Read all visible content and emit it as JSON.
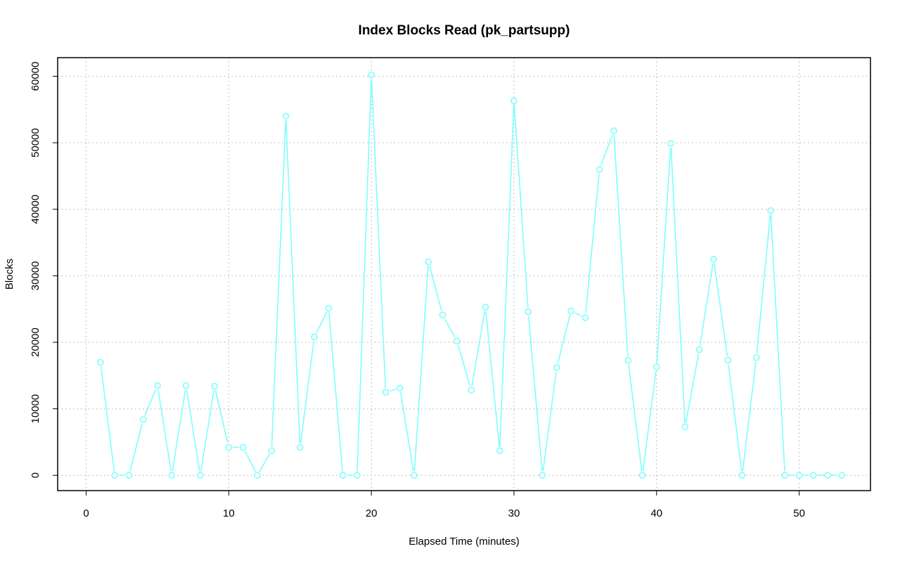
{
  "chart_data": {
    "type": "line",
    "title": "Index Blocks Read (pk_partsupp)",
    "xlabel": "Elapsed Time (minutes)",
    "ylabel": "Blocks",
    "xlim": [
      -2,
      55
    ],
    "ylim": [
      -2300,
      62800
    ],
    "xticks": [
      0,
      10,
      20,
      30,
      40,
      50
    ],
    "yticks": [
      0,
      10000,
      20000,
      30000,
      40000,
      50000,
      60000
    ],
    "grid": true,
    "series_color": "#7ffdfd",
    "series": [
      {
        "x": [
          1,
          2,
          3,
          4,
          5,
          6,
          7,
          8,
          9,
          10,
          11,
          12,
          13,
          14,
          15,
          16,
          17,
          18,
          19,
          20,
          21,
          22,
          23,
          24,
          25,
          26,
          27,
          28,
          29,
          30,
          31,
          32,
          33,
          34,
          35,
          36,
          37,
          38,
          39,
          40,
          41,
          42,
          43,
          44,
          45,
          46,
          47,
          48,
          49,
          50,
          51,
          52,
          53
        ],
        "values": [
          17000,
          0,
          0,
          8400,
          13500,
          0,
          13500,
          0,
          13400,
          4200,
          4200,
          0,
          3700,
          54000,
          4200,
          20800,
          25100,
          0,
          0,
          60200,
          12500,
          13100,
          0,
          32100,
          24100,
          20200,
          12800,
          25300,
          3700,
          56300,
          24600,
          0,
          16200,
          24700,
          23700,
          46000,
          51800,
          17300,
          0,
          16300,
          49900,
          7300,
          18900,
          32500,
          17300,
          0,
          17700,
          39800,
          0,
          0,
          0,
          0,
          0
        ]
      }
    ]
  }
}
